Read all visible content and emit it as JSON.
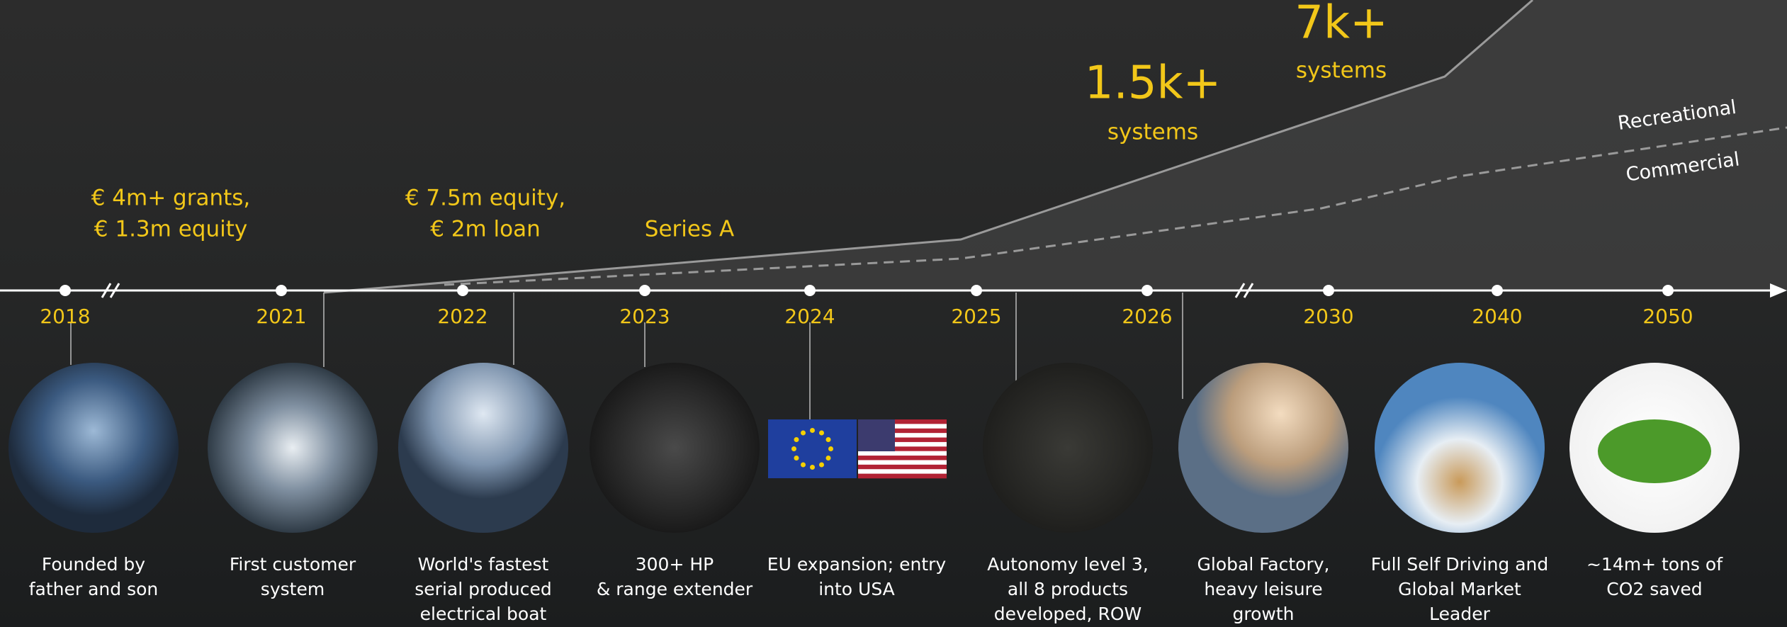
{
  "growth": {
    "high": {
      "value": "1.5k+",
      "unit": "systems"
    },
    "peak": {
      "value": "7k+",
      "unit": "systems"
    },
    "line_labels": [
      "Recreational",
      "Commercial"
    ]
  },
  "funding": [
    {
      "lines": [
        "€ 4m+ grants,",
        "€ 1.3m equity"
      ]
    },
    {
      "lines": [
        "€ 7.5m equity,",
        "€ 2m loan"
      ]
    },
    {
      "lines": [
        "Series A"
      ]
    }
  ],
  "years": [
    "2018",
    "2021",
    "2022",
    "2023",
    "2024",
    "2025",
    "2026",
    "2030",
    "2040",
    "2050"
  ],
  "milestones": [
    {
      "caption": [
        "Founded by",
        "father and son"
      ]
    },
    {
      "caption": [
        "First customer",
        "system"
      ]
    },
    {
      "caption": [
        "World's fastest",
        "serial produced",
        "electrical boat"
      ]
    },
    {
      "caption": [
        "300+ HP",
        "& range extender"
      ]
    },
    {
      "caption": [
        "EU expansion; entry",
        "into USA"
      ]
    },
    {
      "caption": [
        "Autonomy level 3,",
        "all 8 products",
        "developed, ROW"
      ]
    },
    {
      "caption": [
        "Global Factory,",
        "heavy leisure",
        "growth"
      ]
    },
    {
      "caption": [
        "Full Self Driving and",
        "Global Market",
        "Leader"
      ]
    },
    {
      "caption": [
        "~14m+ tons of",
        "CO2 saved"
      ]
    }
  ]
}
